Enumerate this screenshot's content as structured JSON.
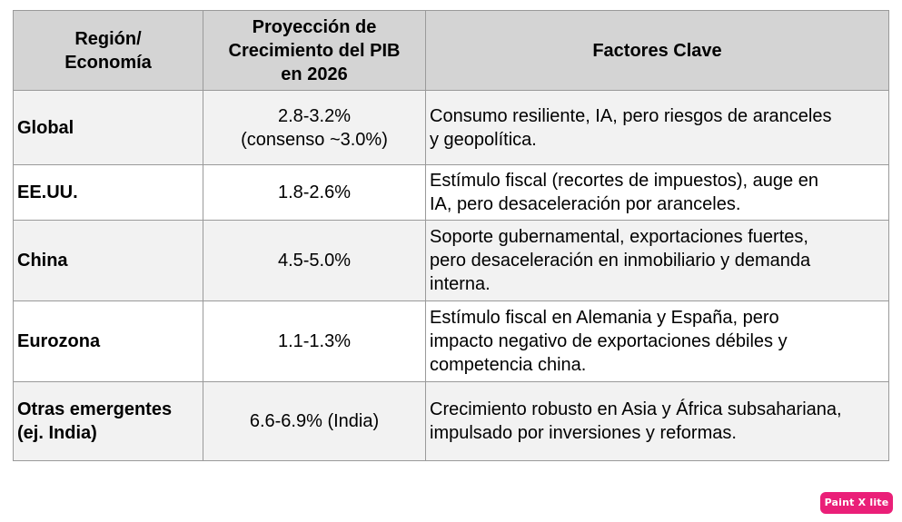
{
  "table": {
    "headers": {
      "region": "Región/\nEconomía",
      "growth": "Proyección de\nCrecimiento del PIB\nen 2026",
      "factors": "Factores Clave"
    },
    "rows": [
      {
        "region": "Global",
        "growth": "2.8-3.2%\n(consenso ~3.0%)",
        "factors": "Consumo resiliente, IA, pero riesgos de aranceles\ny geopolítica."
      },
      {
        "region": "EE.UU.",
        "growth": "1.8-2.6%",
        "factors": "Estímulo fiscal (recortes de impuestos), auge en\nIA, pero desaceleración por aranceles."
      },
      {
        "region": "China",
        "growth": "4.5-5.0%",
        "factors": "Soporte gubernamental, exportaciones fuertes,\npero desaceleración en inmobiliario y demanda\ninterna."
      },
      {
        "region": "Eurozona",
        "growth": "1.1-1.3%",
        "factors": "Estímulo fiscal en Alemania y España, pero\nimpacto negativo de exportaciones débiles y\ncompetencia china."
      },
      {
        "region": "Otras emergentes\n(ej. India)",
        "growth": "6.6-6.9% (India)",
        "factors": "Crecimiento robusto en Asia y África subsahariana,\nimpulsado por inversiones y reformas."
      }
    ]
  },
  "badge": {
    "label": "Paint X lite",
    "color": "#ea1f78"
  }
}
